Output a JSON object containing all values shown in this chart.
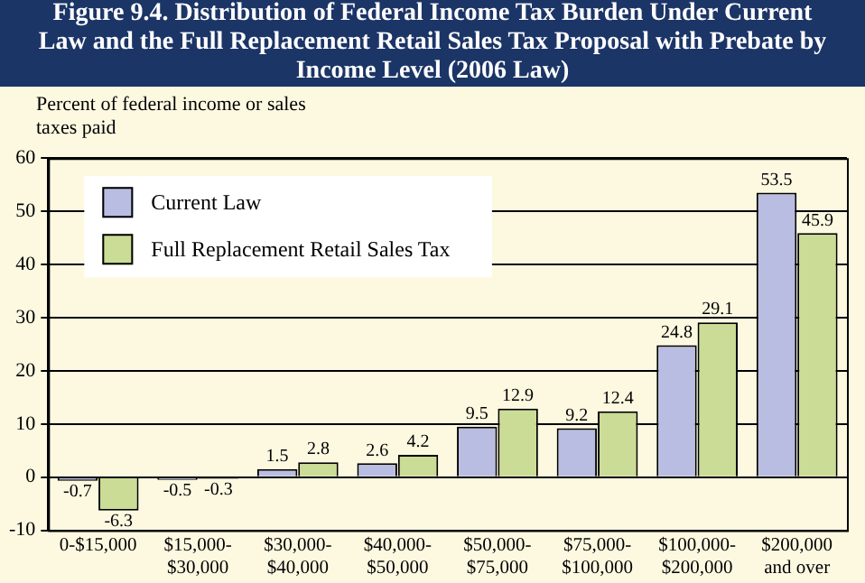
{
  "chart_data": {
    "type": "bar",
    "title": "Figure 9.4. Distribution of Federal Income Tax Burden Under Current Law and the Full Replacement Retail Sales Tax Proposal with Prebate by Income Level (2006 Law)",
    "ylabel": "Percent of federal income or sales taxes paid",
    "categories": [
      "0-$15,000",
      "$15,000-$30,000",
      "$30,000-$40,000",
      "$40,000-$50,000",
      "$50,000-$75,000",
      "$75,000-$100,000",
      "$100,000-$200,000",
      "$200,000 and over"
    ],
    "series": [
      {
        "name": "Current Law",
        "color": "#b9bde2",
        "values": [
          -0.7,
          -0.5,
          1.5,
          2.6,
          9.5,
          9.2,
          24.8,
          53.5
        ]
      },
      {
        "name": "Full Replacement Retail Sales Tax",
        "color": "#cadc96",
        "values": [
          -6.3,
          -0.3,
          2.8,
          4.2,
          12.9,
          12.4,
          29.1,
          45.9
        ]
      }
    ],
    "ylim": [
      -10,
      60
    ],
    "yticks": [
      -10,
      0,
      10,
      20,
      30,
      40,
      50,
      60
    ],
    "grid": "y",
    "legend": "top left",
    "data_labels": true
  }
}
